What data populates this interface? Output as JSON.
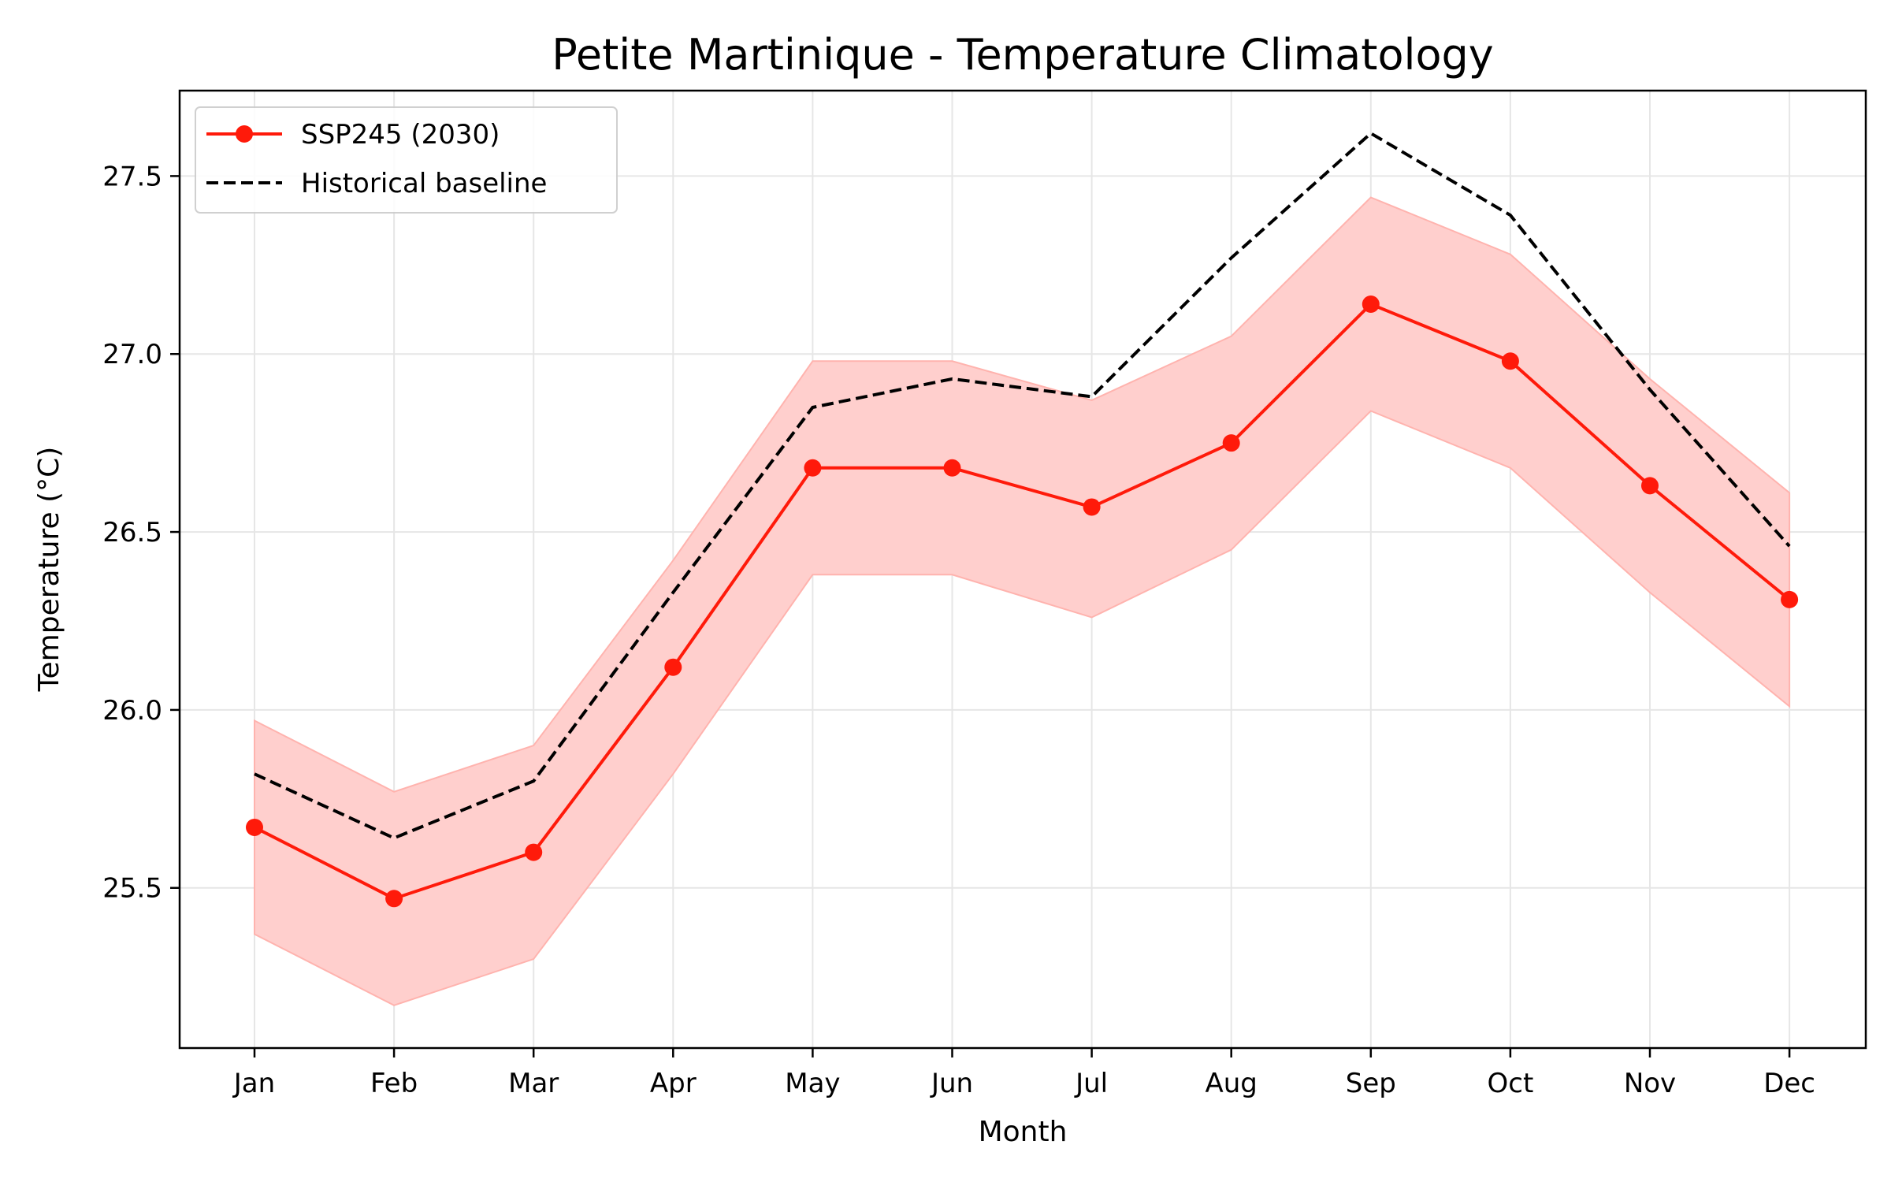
{
  "chart_data": {
    "type": "line",
    "title": "Petite Martinique - Temperature Climatology",
    "xlabel": "Month",
    "ylabel": "Temperature (°C)",
    "categories": [
      "Jan",
      "Feb",
      "Mar",
      "Apr",
      "May",
      "Jun",
      "Jul",
      "Aug",
      "Sep",
      "Oct",
      "Nov",
      "Dec"
    ],
    "ylim": [
      25.05,
      27.74
    ],
    "yticks": [
      "25.5",
      "26.0",
      "26.5",
      "27.0",
      "27.5"
    ],
    "grid": true,
    "legend_position": "top-left",
    "series": [
      {
        "name": "SSP245 (2030)",
        "style": "solid-markers",
        "color": "#ff1a0a",
        "values": [
          25.67,
          25.47,
          25.6,
          26.12,
          26.68,
          26.68,
          26.57,
          26.75,
          27.14,
          26.98,
          26.63,
          26.31
        ],
        "band_lower": [
          25.37,
          25.17,
          25.3,
          25.82,
          26.38,
          26.38,
          26.26,
          26.45,
          26.84,
          26.68,
          26.33,
          26.01
        ],
        "band_upper": [
          25.97,
          25.77,
          25.9,
          26.42,
          26.98,
          26.98,
          26.87,
          27.05,
          27.44,
          27.28,
          26.93,
          26.61
        ],
        "band_color": "#ffcfcd"
      },
      {
        "name": "Historical baseline",
        "style": "dashed",
        "color": "#000000",
        "values": [
          25.82,
          25.64,
          25.8,
          26.33,
          26.85,
          26.93,
          26.88,
          27.27,
          27.62,
          27.39,
          26.9,
          26.46
        ]
      }
    ]
  }
}
